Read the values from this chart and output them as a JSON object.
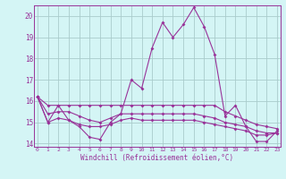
{
  "title": "",
  "xlabel": "Windchill (Refroidissement éolien,°C)",
  "background_color": "#d4f5f5",
  "line_color": "#993399",
  "grid_color": "#aacccc",
  "text_color": "#993399",
  "spine_color": "#993399",
  "ylim_bottom": 14.0,
  "ylim_top": 20.5,
  "yticks": [
    14,
    15,
    16,
    17,
    18,
    19,
    20
  ],
  "xticks": [
    0,
    1,
    2,
    3,
    4,
    5,
    6,
    7,
    8,
    9,
    10,
    11,
    12,
    13,
    14,
    15,
    16,
    17,
    18,
    19,
    20,
    21,
    22,
    23
  ],
  "line1_jagged": [
    16.2,
    15.0,
    15.8,
    15.1,
    14.8,
    14.3,
    14.2,
    15.0,
    15.4,
    17.0,
    16.6,
    18.5,
    19.7,
    19.0,
    19.6,
    20.4,
    19.5,
    18.2,
    15.3,
    15.8,
    14.8,
    14.1,
    14.1,
    14.6
  ],
  "line2_flat": [
    16.2,
    15.8,
    15.8,
    15.8,
    15.8,
    15.8,
    15.8,
    15.8,
    15.8,
    15.8,
    15.8,
    15.8,
    15.8,
    15.8,
    15.8,
    15.8,
    15.8,
    15.8,
    15.5,
    15.3,
    15.1,
    14.9,
    14.8,
    14.7
  ],
  "line3_mid": [
    16.2,
    15.4,
    15.5,
    15.5,
    15.3,
    15.1,
    15.0,
    15.2,
    15.4,
    15.4,
    15.4,
    15.4,
    15.4,
    15.4,
    15.4,
    15.4,
    15.3,
    15.2,
    15.0,
    14.9,
    14.8,
    14.6,
    14.5,
    14.5
  ],
  "line4_low": [
    16.2,
    15.0,
    15.2,
    15.1,
    14.9,
    14.8,
    14.8,
    14.9,
    15.1,
    15.2,
    15.1,
    15.1,
    15.1,
    15.1,
    15.1,
    15.1,
    15.0,
    14.9,
    14.8,
    14.7,
    14.6,
    14.4,
    14.4,
    14.5
  ]
}
